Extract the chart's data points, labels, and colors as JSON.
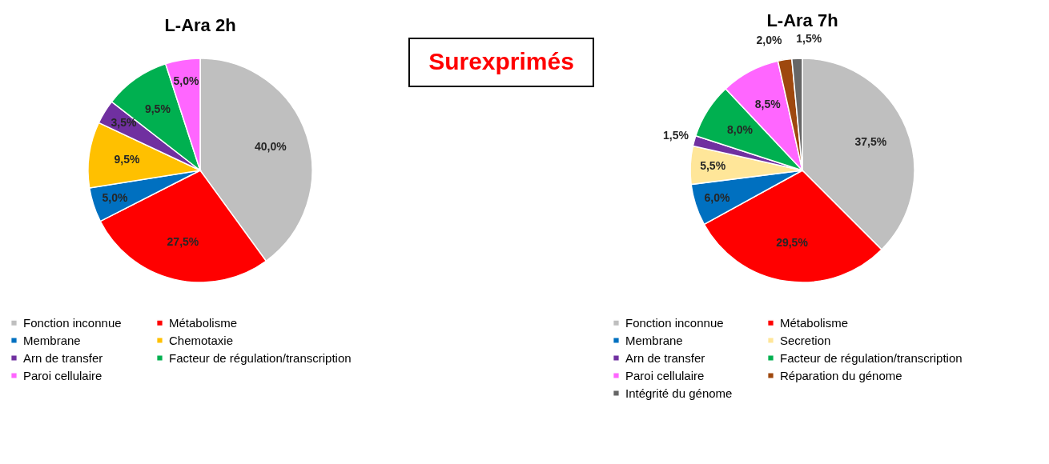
{
  "chart_data": [
    {
      "type": "pie",
      "title": "L-Ara 2h",
      "legend": "bottom",
      "categories": [
        "Fonction inconnue",
        "Métabolisme",
        "Membrane",
        "Chemotaxie",
        "Arn de transfer",
        "Facteur de régulation/transcription",
        "Paroi cellulaire"
      ],
      "values": [
        40.0,
        27.5,
        5.0,
        9.5,
        3.5,
        9.5,
        5.0
      ],
      "value_labels": [
        "40,0%",
        "27,5%",
        "5,0%",
        "9,5%",
        "3,5%",
        "9,5%",
        "5,0%"
      ],
      "colors": [
        "#bfbfbf",
        "#ff0000",
        "#0070c0",
        "#ffc000",
        "#7030a0",
        "#00b050",
        "#ff66ff"
      ]
    },
    {
      "type": "other",
      "title": "Surexprimés"
    },
    {
      "type": "pie",
      "title": "L-Ara 7h",
      "legend": "bottom",
      "categories": [
        "Fonction inconnue",
        "Métabolisme",
        "Membrane",
        "Secretion",
        "Arn de transfer",
        "Facteur de régulation/transcription",
        "Paroi cellulaire",
        "Réparation du génome",
        "Intégrité du génome"
      ],
      "values": [
        37.5,
        29.5,
        6.0,
        5.5,
        1.5,
        8.0,
        8.5,
        2.0,
        1.5
      ],
      "value_labels": [
        "37,5%",
        "29,5%",
        "6,0%",
        "5,5%",
        "1,5%",
        "8,0%",
        "8,5%",
        "2,0%",
        "1,5%"
      ],
      "colors": [
        "#bfbfbf",
        "#ff0000",
        "#0070c0",
        "#ffe699",
        "#7030a0",
        "#00b050",
        "#ff66ff",
        "#9e480e",
        "#666666"
      ]
    }
  ]
}
